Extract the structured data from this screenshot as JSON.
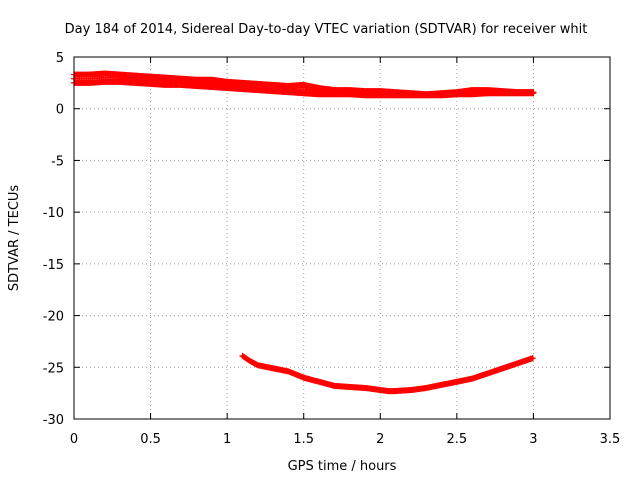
{
  "chart_data": {
    "type": "scatter",
    "title": "Day 184 of 2014, Sidereal Day-to-day VTEC variation (SDTVAR) for receiver whit",
    "xlabel": "GPS time / hours",
    "ylabel": "SDTVAR / TECUs",
    "xlim": [
      0,
      3.5
    ],
    "ylim": [
      -30,
      5
    ],
    "xticks": [
      0,
      0.5,
      1,
      1.5,
      2,
      2.5,
      3,
      3.5
    ],
    "xtick_labels": [
      "0",
      "0.5",
      "1",
      "1.5",
      "2",
      "2.5",
      "3",
      "3.5"
    ],
    "yticks": [
      5,
      0,
      -5,
      -10,
      -15,
      -20,
      -25,
      -30
    ],
    "ytick_labels": [
      "5",
      "0",
      "-5",
      "-10",
      "-15",
      "-20",
      "-25",
      "-30"
    ],
    "grid": true,
    "marker": "plus",
    "color": "#ff0000",
    "series": [
      {
        "name": "upper-band-top",
        "x": [
          0.0,
          0.1,
          0.2,
          0.3,
          0.4,
          0.5,
          0.6,
          0.7,
          0.8,
          0.9,
          1.0,
          1.1,
          1.2,
          1.3,
          1.4,
          1.5,
          1.6,
          1.7,
          1.8,
          1.9,
          2.0,
          2.1,
          2.2,
          2.3,
          2.4,
          2.5,
          2.6,
          2.7,
          2.8,
          2.9,
          3.0
        ],
        "values": [
          3.3,
          3.3,
          3.4,
          3.3,
          3.2,
          3.1,
          3.0,
          2.9,
          2.8,
          2.8,
          2.6,
          2.5,
          2.4,
          2.3,
          2.2,
          2.3,
          2.0,
          1.8,
          1.8,
          1.7,
          1.7,
          1.6,
          1.5,
          1.4,
          1.5,
          1.6,
          1.8,
          1.8,
          1.7,
          1.6,
          1.6
        ]
      },
      {
        "name": "upper-band-bottom",
        "x": [
          0.0,
          0.1,
          0.2,
          0.3,
          0.4,
          0.5,
          0.6,
          0.7,
          0.8,
          0.9,
          1.0,
          1.1,
          1.2,
          1.3,
          1.4,
          1.5,
          1.6,
          1.7,
          1.8,
          1.9,
          2.0,
          2.1,
          2.2,
          2.3,
          2.4,
          2.5,
          2.6,
          2.7,
          2.8,
          2.9,
          3.0
        ],
        "values": [
          2.5,
          2.5,
          2.6,
          2.6,
          2.5,
          2.4,
          2.3,
          2.3,
          2.2,
          2.1,
          2.0,
          1.9,
          1.8,
          1.7,
          1.6,
          1.5,
          1.4,
          1.4,
          1.4,
          1.3,
          1.3,
          1.3,
          1.3,
          1.3,
          1.3,
          1.4,
          1.4,
          1.5,
          1.5,
          1.5,
          1.5
        ]
      },
      {
        "name": "lower-curve",
        "x": [
          1.1,
          1.15,
          1.2,
          1.3,
          1.4,
          1.5,
          1.6,
          1.7,
          1.8,
          1.9,
          2.0,
          2.05,
          2.1,
          2.2,
          2.3,
          2.4,
          2.5,
          2.6,
          2.7,
          2.8,
          2.9,
          3.0
        ],
        "values": [
          -23.9,
          -24.4,
          -24.8,
          -25.1,
          -25.4,
          -26.0,
          -26.4,
          -26.8,
          -26.9,
          -27.0,
          -27.2,
          -27.3,
          -27.3,
          -27.2,
          -27.0,
          -26.7,
          -26.4,
          -26.1,
          -25.6,
          -25.1,
          -24.6,
          -24.1
        ]
      }
    ]
  }
}
